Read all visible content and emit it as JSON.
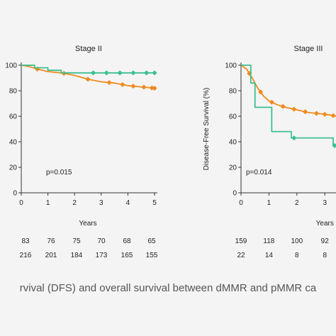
{
  "caption": "rvival (DFS) and overall survival between dMMR and pMMR ca",
  "colors": {
    "pMMR": "#f08a1e",
    "dMMR": "#3cbf8f",
    "axis": "#333333"
  },
  "chart_data": [
    {
      "type": "line",
      "title": "Stage II",
      "xlabel": "Years",
      "ylabel": "",
      "xlim": [
        0,
        5
      ],
      "ylim": [
        0,
        100
      ],
      "xticks": [
        0,
        1,
        2,
        3,
        4,
        5
      ],
      "yticks": [
        0,
        20,
        40,
        60,
        80,
        100
      ],
      "annotation": "p=0.015",
      "series": [
        {
          "color": "#f08a1e",
          "step": false,
          "x": [
            0,
            0.3,
            0.6,
            1,
            1.5,
            2,
            2.5,
            3,
            3.5,
            4,
            4.5,
            5
          ],
          "y": [
            100,
            99,
            97,
            95,
            94,
            92,
            89,
            87,
            86,
            84,
            83,
            82
          ],
          "censor_x": [
            0.6,
            1.6,
            2.5,
            3.3,
            3.8,
            4.2,
            4.6,
            4.9,
            5.0
          ]
        },
        {
          "color": "#3cbf8f",
          "step": true,
          "x": [
            0,
            0.5,
            1.0,
            1.5,
            5
          ],
          "y": [
            100,
            98,
            96,
            94,
            94
          ],
          "censor_x": [
            2.7,
            3.2,
            3.7,
            4.2,
            4.7,
            5.0
          ]
        }
      ],
      "risk_table": [
        [
          "83",
          "76",
          "75",
          "70",
          "68",
          "65"
        ],
        [
          "216",
          "201",
          "184",
          "173",
          "165",
          "155"
        ]
      ]
    },
    {
      "type": "line",
      "title": "Stage III",
      "xlabel": "Years",
      "ylabel": "Disease-Free Survival (%)",
      "xlim": [
        0,
        3.4
      ],
      "ylim": [
        0,
        100
      ],
      "xticks": [
        0,
        1,
        2,
        3
      ],
      "yticks": [
        0,
        20,
        40,
        60,
        80,
        100
      ],
      "annotation": "p=0.014",
      "series": [
        {
          "color": "#f08a1e",
          "step": false,
          "x": [
            0,
            0.2,
            0.4,
            0.6,
            0.8,
            1.0,
            1.3,
            1.6,
            2.0,
            2.4,
            2.8,
            3.2,
            3.4
          ],
          "y": [
            100,
            97,
            90,
            82,
            76,
            72,
            69,
            67,
            65,
            63,
            62,
            61,
            60
          ],
          "censor_x": [
            0.3,
            0.7,
            1.1,
            1.5,
            1.9,
            2.3,
            2.7,
            3.0,
            3.3
          ]
        },
        {
          "color": "#3cbf8f",
          "step": true,
          "x": [
            0,
            0.35,
            0.5,
            1.1,
            1.8,
            3.3,
            3.4
          ],
          "y": [
            100,
            86,
            67,
            48,
            43,
            37,
            37
          ],
          "censor_x": [
            1.9,
            3.35
          ]
        }
      ],
      "risk_table": [
        [
          "159",
          "118",
          "100",
          "92"
        ],
        [
          "22",
          "14",
          "8",
          "8"
        ]
      ]
    }
  ]
}
